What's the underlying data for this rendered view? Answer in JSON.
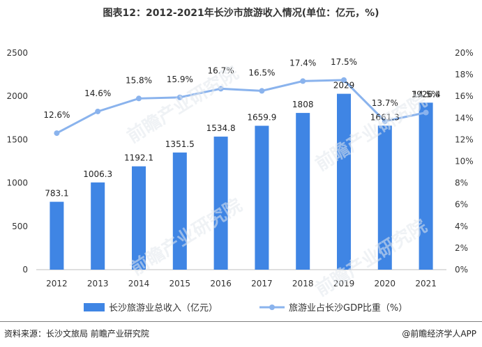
{
  "title": "图表12：2012-2021年长沙市旅游收入情况(单位：亿元，%)",
  "footer": {
    "source": "资料来源：长沙文旅局 前瞻产业研究院",
    "brand": "@前瞻经济学人APP"
  },
  "watermark": "前瞻产业研究院",
  "chart_data": {
    "type": "bar",
    "categories": [
      "2012",
      "2013",
      "2014",
      "2015",
      "2016",
      "2017",
      "2018",
      "2019",
      "2020",
      "2021"
    ],
    "series": [
      {
        "name": "长沙旅游业总收入（亿元）",
        "type": "bar",
        "axis": "left",
        "values": [
          783.1,
          1006.3,
          1192.1,
          1351.5,
          1534.8,
          1659.9,
          1808,
          2029,
          1661.3,
          1926.4
        ],
        "labels": [
          "783.1",
          "1006.3",
          "1192.1",
          "1351.5",
          "1534.8",
          "1659.9",
          "1808",
          "2029",
          "1661.3",
          "1926.4"
        ],
        "color": "#3f85e4"
      },
      {
        "name": "旅游业占长沙GDP比重（%）",
        "type": "line",
        "axis": "right",
        "values": [
          12.6,
          14.6,
          15.8,
          15.9,
          16.7,
          16.5,
          17.4,
          17.5,
          13.7,
          14.5
        ],
        "labels": [
          "12.6%",
          "14.6%",
          "15.8%",
          "15.9%",
          "16.7%",
          "16.5%",
          "17.4%",
          "17.5%",
          "13.7%",
          "14.5%"
        ],
        "color": "#8ab3ed"
      }
    ],
    "left_axis": {
      "min": 0,
      "max": 2500,
      "ticks": [
        "0",
        "500",
        "1000",
        "1500",
        "2000",
        "2500"
      ]
    },
    "right_axis": {
      "min": 0,
      "max": 20,
      "ticks": [
        "0%",
        "2%",
        "4%",
        "6%",
        "8%",
        "10%",
        "12%",
        "14%",
        "16%",
        "18%",
        "20%"
      ]
    },
    "legend_position": "bottom"
  }
}
